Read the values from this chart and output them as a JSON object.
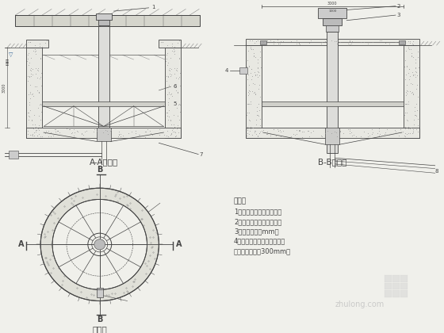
{
  "bg_color": "#f0f0eb",
  "line_color": "#444444",
  "thin_color": "#555555",
  "hatch_color": "#888888",
  "title_aa": "A-A剖视图",
  "title_bb": "B-B剖视图",
  "title_plan": "俯视图",
  "notes_title": "说明：",
  "notes": [
    "1、所有穿墙管均设套管。",
    "2、弯管处均用法兰连接。",
    "3、标注单位为mm。",
    "4、构筑物墙体采用钢筋混凝",
    "土，墙体厚度为300mm。"
  ],
  "watermark": "zhulong.com"
}
